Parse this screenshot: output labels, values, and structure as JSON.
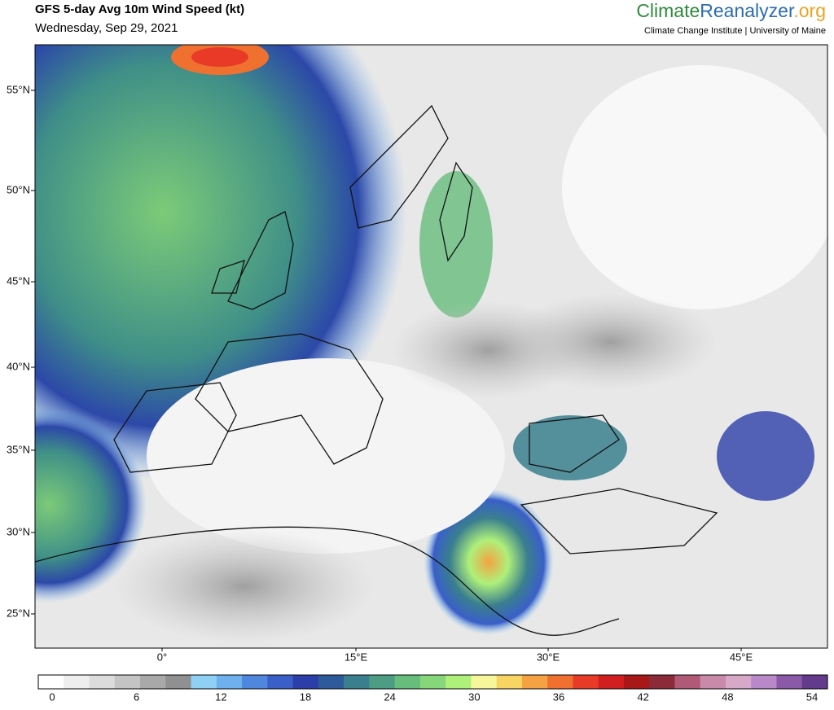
{
  "header": {
    "title": "GFS 5-day Avg 10m Wind Speed (kt)",
    "subtitle": "Wednesday, Sep 29, 2021",
    "brand": [
      "Climate",
      "Reanalyzer",
      ".org"
    ],
    "institute": "Climate Change Institute | University of Maine"
  },
  "map": {
    "lat_labels": [
      "55°N",
      "50°N",
      "45°N",
      "40°N",
      "35°N",
      "30°N",
      "25°N"
    ],
    "lon_labels": [
      "0°",
      "15°E",
      "30°E",
      "45°E"
    ]
  },
  "colorbar": {
    "ticks": [
      0,
      6,
      12,
      18,
      24,
      30,
      36,
      42,
      48,
      54
    ],
    "colors": [
      "#ffffff",
      "#eeeeee",
      "#dcdcdc",
      "#c4c4c4",
      "#a9a9a9",
      "#909090",
      "#8fd0f5",
      "#6fb0ee",
      "#4f86de",
      "#3a5fc9",
      "#2c3fa8",
      "#2e5a9c",
      "#3a7f8e",
      "#4d9d84",
      "#66bd7c",
      "#86d67a",
      "#aef07a",
      "#f6f79a",
      "#f8d562",
      "#f5a342",
      "#f07030",
      "#e83a26",
      "#d21e1e",
      "#a81818",
      "#8c2a3a",
      "#b05a78",
      "#c88aa8",
      "#d8a8c8",
      "#b888c8",
      "#8a5aa8",
      "#643a8c"
    ]
  }
}
